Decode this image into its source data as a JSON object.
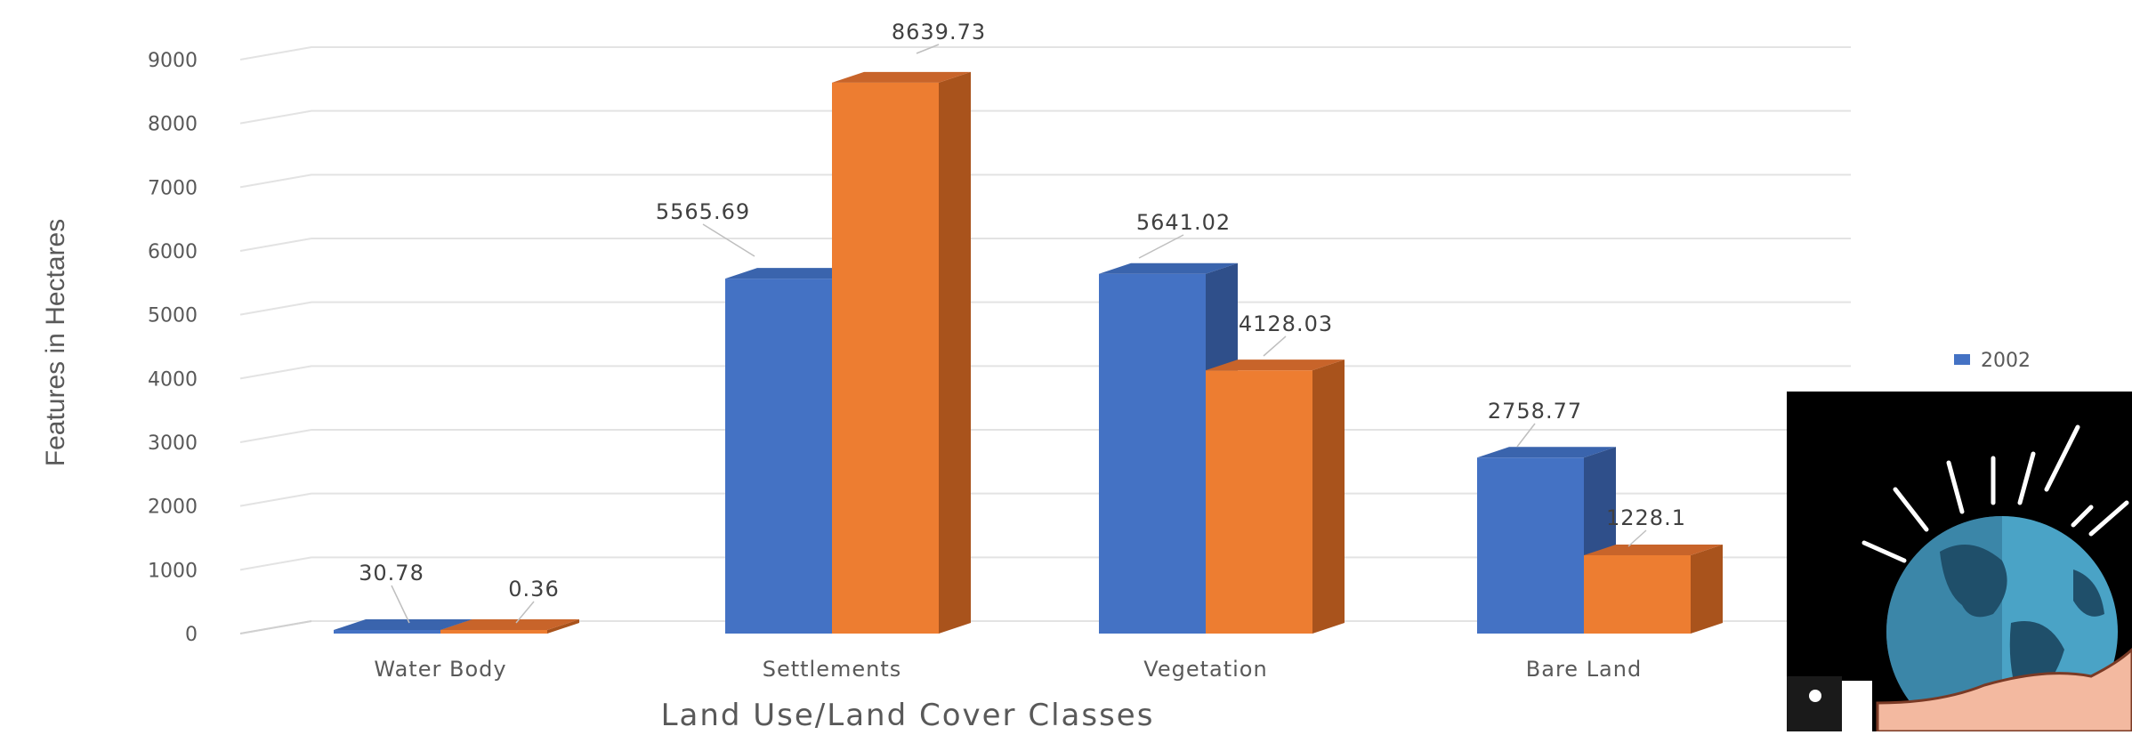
{
  "chart_data": {
    "type": "bar",
    "style": "3d-clustered-column",
    "categories": [
      "Water Body",
      "Settlements",
      "Vegetation",
      "Bare Land"
    ],
    "series": [
      {
        "name": "2002",
        "values": [
          30.78,
          5565.69,
          5641.02,
          2758.77
        ],
        "data_labels": [
          "30.78",
          "5565.69",
          "5641.02",
          "2758.77"
        ]
      },
      {
        "name": "",
        "values": [
          0.36,
          8639.73,
          4128.03,
          1228.1
        ],
        "data_labels": [
          "0.36",
          "8639.73",
          "4128.03",
          "1228.1"
        ]
      }
    ],
    "y_ticks": [
      "0",
      "1000",
      "2000",
      "3000",
      "4000",
      "5000",
      "6000",
      "7000",
      "8000",
      "9000"
    ],
    "ylim": [
      0,
      9000
    ],
    "xlabel": "Land Use/Land Cover Classes",
    "ylabel": "Features in Hectares",
    "grid": true,
    "legend_position": "right",
    "legend_label": "2002",
    "colors": {
      "series_1_front": "#4472c4",
      "series_1_side": "#2f4f8a",
      "series_1_top": "#3a64ad",
      "series_2_front": "#ed7d31",
      "series_2_side": "#a9531c",
      "series_2_top": "#c8642a",
      "grid": "#e3e3e3",
      "text": "#595959"
    }
  },
  "overlay_icon": {
    "name": "globe-in-hand-icon",
    "colors": {
      "background": "#000000",
      "ocean": "#4aa3c6",
      "land": "#1f4f6a",
      "hand": "#f3b9a0"
    }
  }
}
